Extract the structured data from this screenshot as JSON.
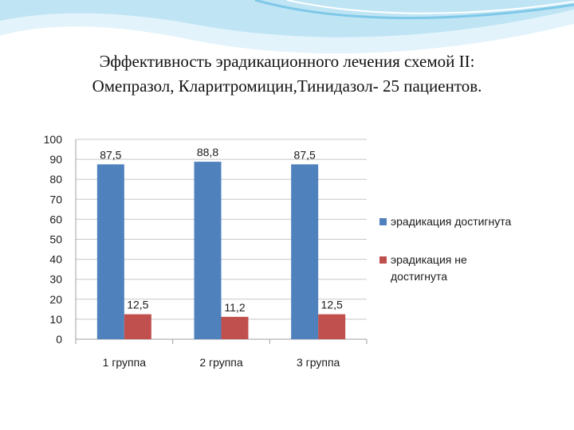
{
  "slide": {
    "title_line1": "Эффективность эрадикационного лечения схемой II:",
    "title_line2": "Омепразол, Кларитромицин,Тинидазол- 25 пациентов."
  },
  "colors": {
    "series_1": "#4F81BD",
    "series_2": "#C0504D",
    "grid": "#C8C8C8",
    "axis": "#A0A0A0",
    "wave_light": "#D6EEF8",
    "wave_dark": "#7FC8E8"
  },
  "chart_data": {
    "type": "bar",
    "title": "",
    "xlabel": "",
    "ylabel": "",
    "categories": [
      "1 группа",
      "2 группа",
      "3 группа"
    ],
    "series": [
      {
        "name": "эрадикация достигнута",
        "values": [
          87.5,
          88.8,
          87.5
        ],
        "labels": [
          "87,5",
          "88,8",
          "87,5"
        ],
        "color": "#4F81BD"
      },
      {
        "name": "эрадикация не достигнута",
        "values": [
          12.5,
          11.2,
          12.5
        ],
        "labels": [
          "12,5",
          "11,2",
          "12,5"
        ],
        "color": "#C0504D"
      }
    ],
    "ylim": [
      0,
      100
    ],
    "yticks": [
      0,
      10,
      20,
      30,
      40,
      50,
      60,
      70,
      80,
      90,
      100
    ],
    "grid": true,
    "legend": {
      "placement": "right",
      "entries": [
        {
          "lines": [
            "эрадикация достигнута"
          ]
        },
        {
          "lines": [
            "эрадикация не",
            "достигнута"
          ]
        }
      ]
    }
  }
}
